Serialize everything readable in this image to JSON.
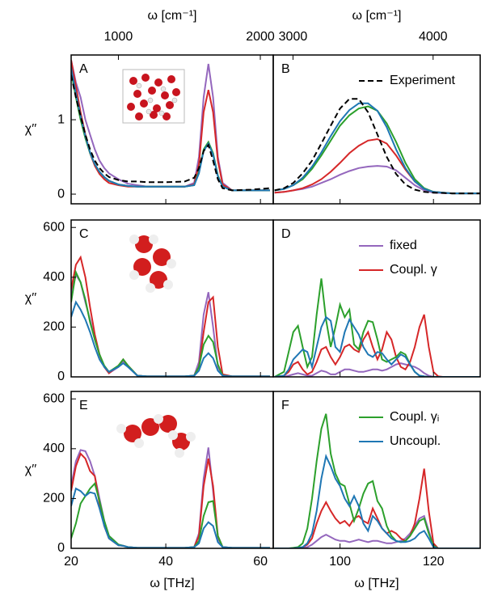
{
  "chart_data": [
    {
      "type": "line",
      "label": "A",
      "ylabel": "χ′′",
      "x2label": "ω [cm⁻¹]",
      "x2lim": [
        667,
        2091
      ],
      "x2ticks": [
        1000,
        2000
      ],
      "xlim": [
        20,
        62.7
      ],
      "ylim": [
        -0.13,
        1.87
      ],
      "yticks": [
        0,
        1
      ],
      "x": [
        20,
        21,
        22,
        23,
        24,
        25,
        26,
        27,
        28,
        30,
        31,
        32,
        34,
        36,
        40,
        44,
        46,
        47,
        48,
        49,
        50,
        51,
        52,
        54,
        58,
        62
      ],
      "series": [
        {
          "color": "#9467bd",
          "values": [
            1.8,
            1.5,
            1.3,
            1.0,
            0.8,
            0.6,
            0.45,
            0.35,
            0.28,
            0.2,
            0.17,
            0.14,
            0.12,
            0.1,
            0.1,
            0.1,
            0.15,
            0.5,
            1.3,
            1.75,
            1.3,
            0.5,
            0.15,
            0.05,
            0.05,
            0.05
          ]
        },
        {
          "color": "#d62728",
          "values": [
            1.8,
            1.45,
            1.1,
            0.8,
            0.55,
            0.38,
            0.27,
            0.2,
            0.15,
            0.12,
            0.11,
            0.1,
            0.1,
            0.1,
            0.1,
            0.1,
            0.13,
            0.4,
            1.1,
            1.4,
            1.1,
            0.45,
            0.13,
            0.05,
            0.05,
            0.05
          ]
        },
        {
          "color": "#2ca02c",
          "values": [
            1.65,
            1.3,
            1.0,
            0.75,
            0.55,
            0.4,
            0.3,
            0.23,
            0.18,
            0.13,
            0.12,
            0.11,
            0.1,
            0.1,
            0.1,
            0.1,
            0.12,
            0.3,
            0.6,
            0.7,
            0.55,
            0.25,
            0.1,
            0.05,
            0.05,
            0.05
          ]
        },
        {
          "color": "#1f77b4",
          "values": [
            1.7,
            1.35,
            1.05,
            0.78,
            0.56,
            0.4,
            0.3,
            0.23,
            0.18,
            0.13,
            0.12,
            0.11,
            0.1,
            0.1,
            0.1,
            0.1,
            0.12,
            0.28,
            0.58,
            0.68,
            0.53,
            0.24,
            0.1,
            0.05,
            0.05,
            0.05
          ]
        },
        {
          "color": "#000000",
          "linestyle": "dashed",
          "values": [
            1.6,
            1.3,
            1.05,
            0.8,
            0.6,
            0.45,
            0.35,
            0.28,
            0.23,
            0.19,
            0.18,
            0.17,
            0.17,
            0.16,
            0.16,
            0.17,
            0.22,
            0.35,
            0.58,
            0.66,
            0.45,
            0.2,
            0.08,
            0.05,
            0.06,
            0.08
          ]
        }
      ]
    },
    {
      "type": "line",
      "label": "B",
      "legend": "upper right",
      "x2label": "ω [cm⁻¹]",
      "x2lim": [
        2859,
        4336
      ],
      "x2ticks": [
        3000,
        4000
      ],
      "xlim": [
        85.7,
        130
      ],
      "ylim": [
        -0.13,
        1.87
      ],
      "x": [
        86,
        88,
        90,
        92,
        94,
        96,
        98,
        100,
        102,
        104,
        106,
        108,
        110,
        112,
        114,
        116,
        118,
        120,
        124,
        130
      ],
      "series": [
        {
          "color": "#9467bd",
          "values": [
            0.02,
            0.03,
            0.05,
            0.07,
            0.1,
            0.15,
            0.2,
            0.26,
            0.31,
            0.35,
            0.37,
            0.38,
            0.37,
            0.32,
            0.22,
            0.12,
            0.05,
            0.02,
            0.01,
            0.01
          ]
        },
        {
          "color": "#d62728",
          "values": [
            0.02,
            0.03,
            0.05,
            0.08,
            0.13,
            0.2,
            0.3,
            0.42,
            0.55,
            0.65,
            0.72,
            0.74,
            0.68,
            0.52,
            0.33,
            0.17,
            0.07,
            0.03,
            0.01,
            0.01
          ]
        },
        {
          "color": "#2ca02c",
          "values": [
            0.05,
            0.07,
            0.12,
            0.2,
            0.34,
            0.52,
            0.72,
            0.92,
            1.06,
            1.15,
            1.18,
            1.12,
            0.95,
            0.7,
            0.42,
            0.2,
            0.08,
            0.03,
            0.01,
            0.01
          ]
        },
        {
          "color": "#1f77b4",
          "values": [
            0.05,
            0.07,
            0.12,
            0.22,
            0.37,
            0.56,
            0.78,
            0.98,
            1.13,
            1.22,
            1.22,
            1.12,
            0.9,
            0.6,
            0.35,
            0.17,
            0.07,
            0.03,
            0.01,
            0.01
          ]
        },
        {
          "name": "Experiment",
          "color": "#000000",
          "linestyle": "dashed",
          "values": [
            0.05,
            0.08,
            0.15,
            0.28,
            0.45,
            0.68,
            0.92,
            1.15,
            1.28,
            1.28,
            1.1,
            0.8,
            0.5,
            0.27,
            0.13,
            0.06,
            0.03,
            0.02,
            0.01,
            0.01
          ]
        }
      ]
    },
    {
      "type": "line",
      "label": "C",
      "ylabel": "χ′′",
      "xlim": [
        20,
        62.7
      ],
      "ylim": [
        0,
        630
      ],
      "yticks": [
        0,
        200,
        400,
        600
      ],
      "x": [
        20,
        21,
        22,
        23,
        24,
        25,
        26,
        27,
        28,
        30,
        31,
        32,
        34,
        36,
        40,
        44,
        46,
        47,
        48,
        49,
        50,
        51,
        52,
        54,
        58,
        62
      ],
      "series": [
        {
          "color": "#9467bd",
          "values": [
            330,
            410,
            380,
            300,
            230,
            150,
            90,
            40,
            15,
            40,
            65,
            40,
            5,
            2,
            2,
            2,
            5,
            60,
            250,
            340,
            200,
            40,
            5,
            2,
            2,
            2
          ]
        },
        {
          "color": "#d62728",
          "values": [
            350,
            450,
            480,
            400,
            280,
            170,
            90,
            40,
            15,
            45,
            70,
            45,
            5,
            2,
            2,
            2,
            5,
            40,
            180,
            300,
            320,
            120,
            10,
            2,
            2,
            2
          ]
        },
        {
          "color": "#2ca02c",
          "values": [
            300,
            420,
            380,
            310,
            220,
            150,
            90,
            45,
            20,
            45,
            70,
            45,
            5,
            2,
            2,
            2,
            5,
            40,
            130,
            165,
            140,
            50,
            5,
            2,
            2,
            2
          ]
        },
        {
          "color": "#1f77b4",
          "values": [
            240,
            300,
            270,
            230,
            180,
            120,
            70,
            40,
            20,
            40,
            55,
            40,
            5,
            2,
            2,
            2,
            5,
            25,
            75,
            95,
            75,
            25,
            5,
            2,
            2,
            2
          ]
        }
      ]
    },
    {
      "type": "line",
      "label": "D",
      "legend": "upper right",
      "xlim": [
        85.7,
        130
      ],
      "ylim": [
        0,
        630
      ],
      "x": [
        86,
        88,
        89,
        90,
        91,
        92,
        93,
        94,
        95,
        96,
        97,
        98,
        99,
        100,
        101,
        102,
        103,
        104,
        105,
        106,
        107,
        108,
        109,
        110,
        111,
        112,
        113,
        114,
        115,
        116,
        117,
        118,
        119,
        120,
        121,
        122,
        126,
        130
      ],
      "series": [
        {
          "name": "fixed",
          "color": "#9467bd",
          "values": [
            0,
            0,
            5,
            10,
            15,
            10,
            5,
            5,
            15,
            25,
            20,
            10,
            10,
            20,
            30,
            30,
            25,
            20,
            20,
            25,
            30,
            30,
            25,
            30,
            40,
            50,
            55,
            50,
            45,
            40,
            30,
            15,
            5,
            0,
            0,
            0,
            0,
            0
          ]
        },
        {
          "name": "Coupl. γ",
          "color": "#d62728",
          "values": [
            0,
            5,
            20,
            50,
            60,
            30,
            10,
            20,
            60,
            110,
            120,
            80,
            50,
            80,
            120,
            130,
            110,
            100,
            150,
            180,
            120,
            70,
            110,
            180,
            150,
            80,
            40,
            30,
            60,
            120,
            200,
            250,
            120,
            20,
            2,
            0,
            0,
            0
          ]
        },
        {
          "color": "#2ca02c",
          "values": [
            0,
            20,
            100,
            180,
            205,
            120,
            40,
            80,
            250,
            395,
            230,
            120,
            200,
            290,
            240,
            270,
            130,
            110,
            180,
            225,
            220,
            150,
            70,
            60,
            70,
            80,
            100,
            90,
            50,
            20,
            5,
            2,
            0,
            0,
            0,
            0,
            0,
            0
          ]
        },
        {
          "color": "#1f77b4",
          "values": [
            0,
            5,
            30,
            70,
            90,
            110,
            100,
            40,
            120,
            200,
            240,
            225,
            120,
            100,
            180,
            230,
            200,
            170,
            120,
            90,
            80,
            100,
            95,
            70,
            50,
            70,
            90,
            80,
            50,
            20,
            5,
            2,
            0,
            0,
            0,
            0,
            0,
            0
          ]
        }
      ]
    },
    {
      "type": "line",
      "label": "E",
      "ylabel": "χ′′",
      "xlabel": "ω [THz]",
      "xlim": [
        20,
        62.7
      ],
      "ylim": [
        0,
        630
      ],
      "yticks": [
        0,
        200,
        400,
        600
      ],
      "xticks": [
        20,
        40,
        60
      ],
      "x": [
        20,
        21,
        22,
        23,
        24,
        25,
        26,
        27,
        28,
        30,
        31,
        32,
        34,
        36,
        40,
        44,
        46,
        47,
        48,
        49,
        50,
        51,
        52,
        54,
        58,
        62
      ],
      "series": [
        {
          "color": "#9467bd",
          "values": [
            250,
            350,
            395,
            390,
            350,
            290,
            200,
            110,
            50,
            15,
            10,
            5,
            2,
            2,
            2,
            2,
            5,
            60,
            280,
            405,
            230,
            40,
            5,
            2,
            2,
            2
          ]
        },
        {
          "color": "#d62728",
          "values": [
            230,
            330,
            380,
            360,
            310,
            290,
            180,
            90,
            40,
            12,
            10,
            5,
            2,
            2,
            2,
            2,
            5,
            50,
            250,
            360,
            250,
            50,
            5,
            2,
            2,
            2
          ]
        },
        {
          "color": "#2ca02c",
          "values": [
            40,
            100,
            180,
            210,
            240,
            260,
            190,
            110,
            50,
            15,
            10,
            5,
            2,
            2,
            2,
            2,
            5,
            30,
            130,
            185,
            190,
            50,
            5,
            2,
            2,
            2
          ]
        },
        {
          "color": "#1f77b4",
          "values": [
            170,
            240,
            230,
            210,
            225,
            220,
            160,
            90,
            40,
            12,
            10,
            5,
            2,
            2,
            2,
            2,
            5,
            20,
            80,
            105,
            90,
            25,
            5,
            2,
            2,
            2
          ]
        }
      ]
    },
    {
      "type": "line",
      "label": "F",
      "legend": "upper right",
      "xlabel": "ω [THz]",
      "xlim": [
        85.7,
        130
      ],
      "ylim": [
        0,
        630
      ],
      "xticks": [
        100,
        120
      ],
      "x": [
        86,
        88,
        89,
        90,
        91,
        92,
        93,
        94,
        95,
        96,
        97,
        98,
        99,
        100,
        101,
        102,
        103,
        104,
        105,
        106,
        107,
        108,
        109,
        110,
        111,
        112,
        113,
        114,
        115,
        116,
        117,
        118,
        119,
        120,
        121,
        122,
        126,
        130
      ],
      "series": [
        {
          "color": "#9467bd",
          "values": [
            0,
            0,
            0,
            0,
            0,
            2,
            5,
            15,
            30,
            45,
            55,
            45,
            35,
            30,
            30,
            25,
            30,
            35,
            30,
            25,
            30,
            30,
            25,
            20,
            20,
            25,
            30,
            40,
            60,
            90,
            120,
            130,
            70,
            10,
            0,
            0,
            0,
            0
          ]
        },
        {
          "color": "#d62728",
          "values": [
            0,
            0,
            0,
            0,
            2,
            5,
            15,
            40,
            100,
            150,
            185,
            150,
            120,
            100,
            110,
            90,
            120,
            130,
            110,
            100,
            160,
            120,
            80,
            60,
            70,
            60,
            40,
            30,
            50,
            100,
            200,
            320,
            150,
            20,
            0,
            0,
            0,
            0
          ]
        },
        {
          "name": "Coupl. γᵢ",
          "color": "#2ca02c",
          "values": [
            0,
            0,
            0,
            2,
            5,
            20,
            80,
            200,
            350,
            480,
            540,
            380,
            300,
            260,
            250,
            180,
            110,
            160,
            220,
            260,
            270,
            190,
            160,
            90,
            50,
            30,
            25,
            30,
            50,
            80,
            110,
            120,
            60,
            10,
            0,
            0,
            0,
            0
          ]
        },
        {
          "name": "Uncoupl.",
          "color": "#1f77b4",
          "values": [
            0,
            0,
            0,
            0,
            2,
            5,
            20,
            60,
            150,
            280,
            370,
            330,
            280,
            250,
            200,
            170,
            210,
            170,
            100,
            70,
            130,
            110,
            80,
            60,
            40,
            30,
            25,
            25,
            30,
            40,
            60,
            70,
            40,
            5,
            0,
            0,
            0,
            0
          ]
        }
      ]
    }
  ]
}
